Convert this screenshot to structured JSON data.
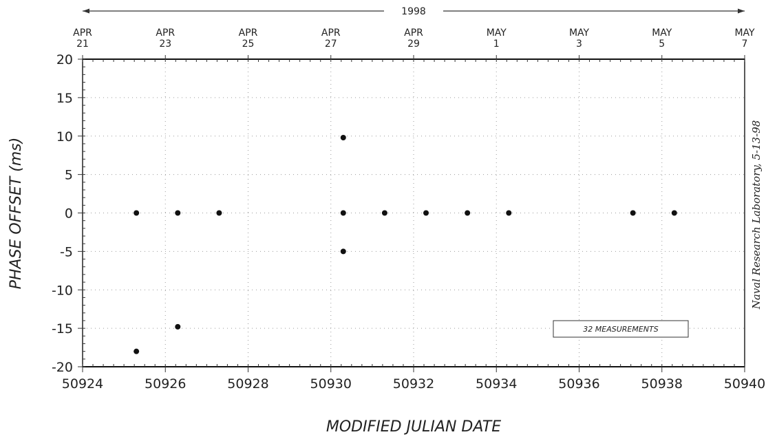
{
  "chart_data": {
    "type": "scatter",
    "xlabel": "MODIFIED JULIAN DATE",
    "ylabel": "PHASE OFFSET (ms)",
    "x_ticks": [
      50924,
      50926,
      50928,
      50930,
      50932,
      50934,
      50936,
      50938,
      50940
    ],
    "y_ticks": [
      20,
      15,
      10,
      5,
      0,
      -5,
      -10,
      -15,
      -20
    ],
    "xlim": [
      50924,
      50940
    ],
    "ylim": [
      -20,
      20
    ],
    "top_axis": {
      "year": "1998",
      "dates": [
        {
          "mjd": 50924,
          "month": "APR",
          "day": "21"
        },
        {
          "mjd": 50926,
          "month": "APR",
          "day": "23"
        },
        {
          "mjd": 50928,
          "month": "APR",
          "day": "25"
        },
        {
          "mjd": 50930,
          "month": "APR",
          "day": "27"
        },
        {
          "mjd": 50932,
          "month": "APR",
          "day": "29"
        },
        {
          "mjd": 50934,
          "month": "MAY",
          "day": "1"
        },
        {
          "mjd": 50936,
          "month": "MAY",
          "day": "3"
        },
        {
          "mjd": 50938,
          "month": "MAY",
          "day": "5"
        },
        {
          "mjd": 50940,
          "month": "MAY",
          "day": "7"
        }
      ]
    },
    "points": [
      {
        "x": 50925.3,
        "y": 0
      },
      {
        "x": 50925.3,
        "y": -18
      },
      {
        "x": 50926.3,
        "y": 0
      },
      {
        "x": 50926.3,
        "y": -14.8
      },
      {
        "x": 50927.3,
        "y": 0
      },
      {
        "x": 50930.3,
        "y": 9.8
      },
      {
        "x": 50930.3,
        "y": 0
      },
      {
        "x": 50930.3,
        "y": -5
      },
      {
        "x": 50931.3,
        "y": 0
      },
      {
        "x": 50932.3,
        "y": 0
      },
      {
        "x": 50933.3,
        "y": 0
      },
      {
        "x": 50934.3,
        "y": 0
      },
      {
        "x": 50937.3,
        "y": 0
      },
      {
        "x": 50938.3,
        "y": 0
      }
    ],
    "annotations": {
      "legend": "32 MEASUREMENTS",
      "side_note": "Naval Research Laboratory, 5-13-98"
    },
    "grid": true,
    "legend_placement": "bottom-right"
  }
}
